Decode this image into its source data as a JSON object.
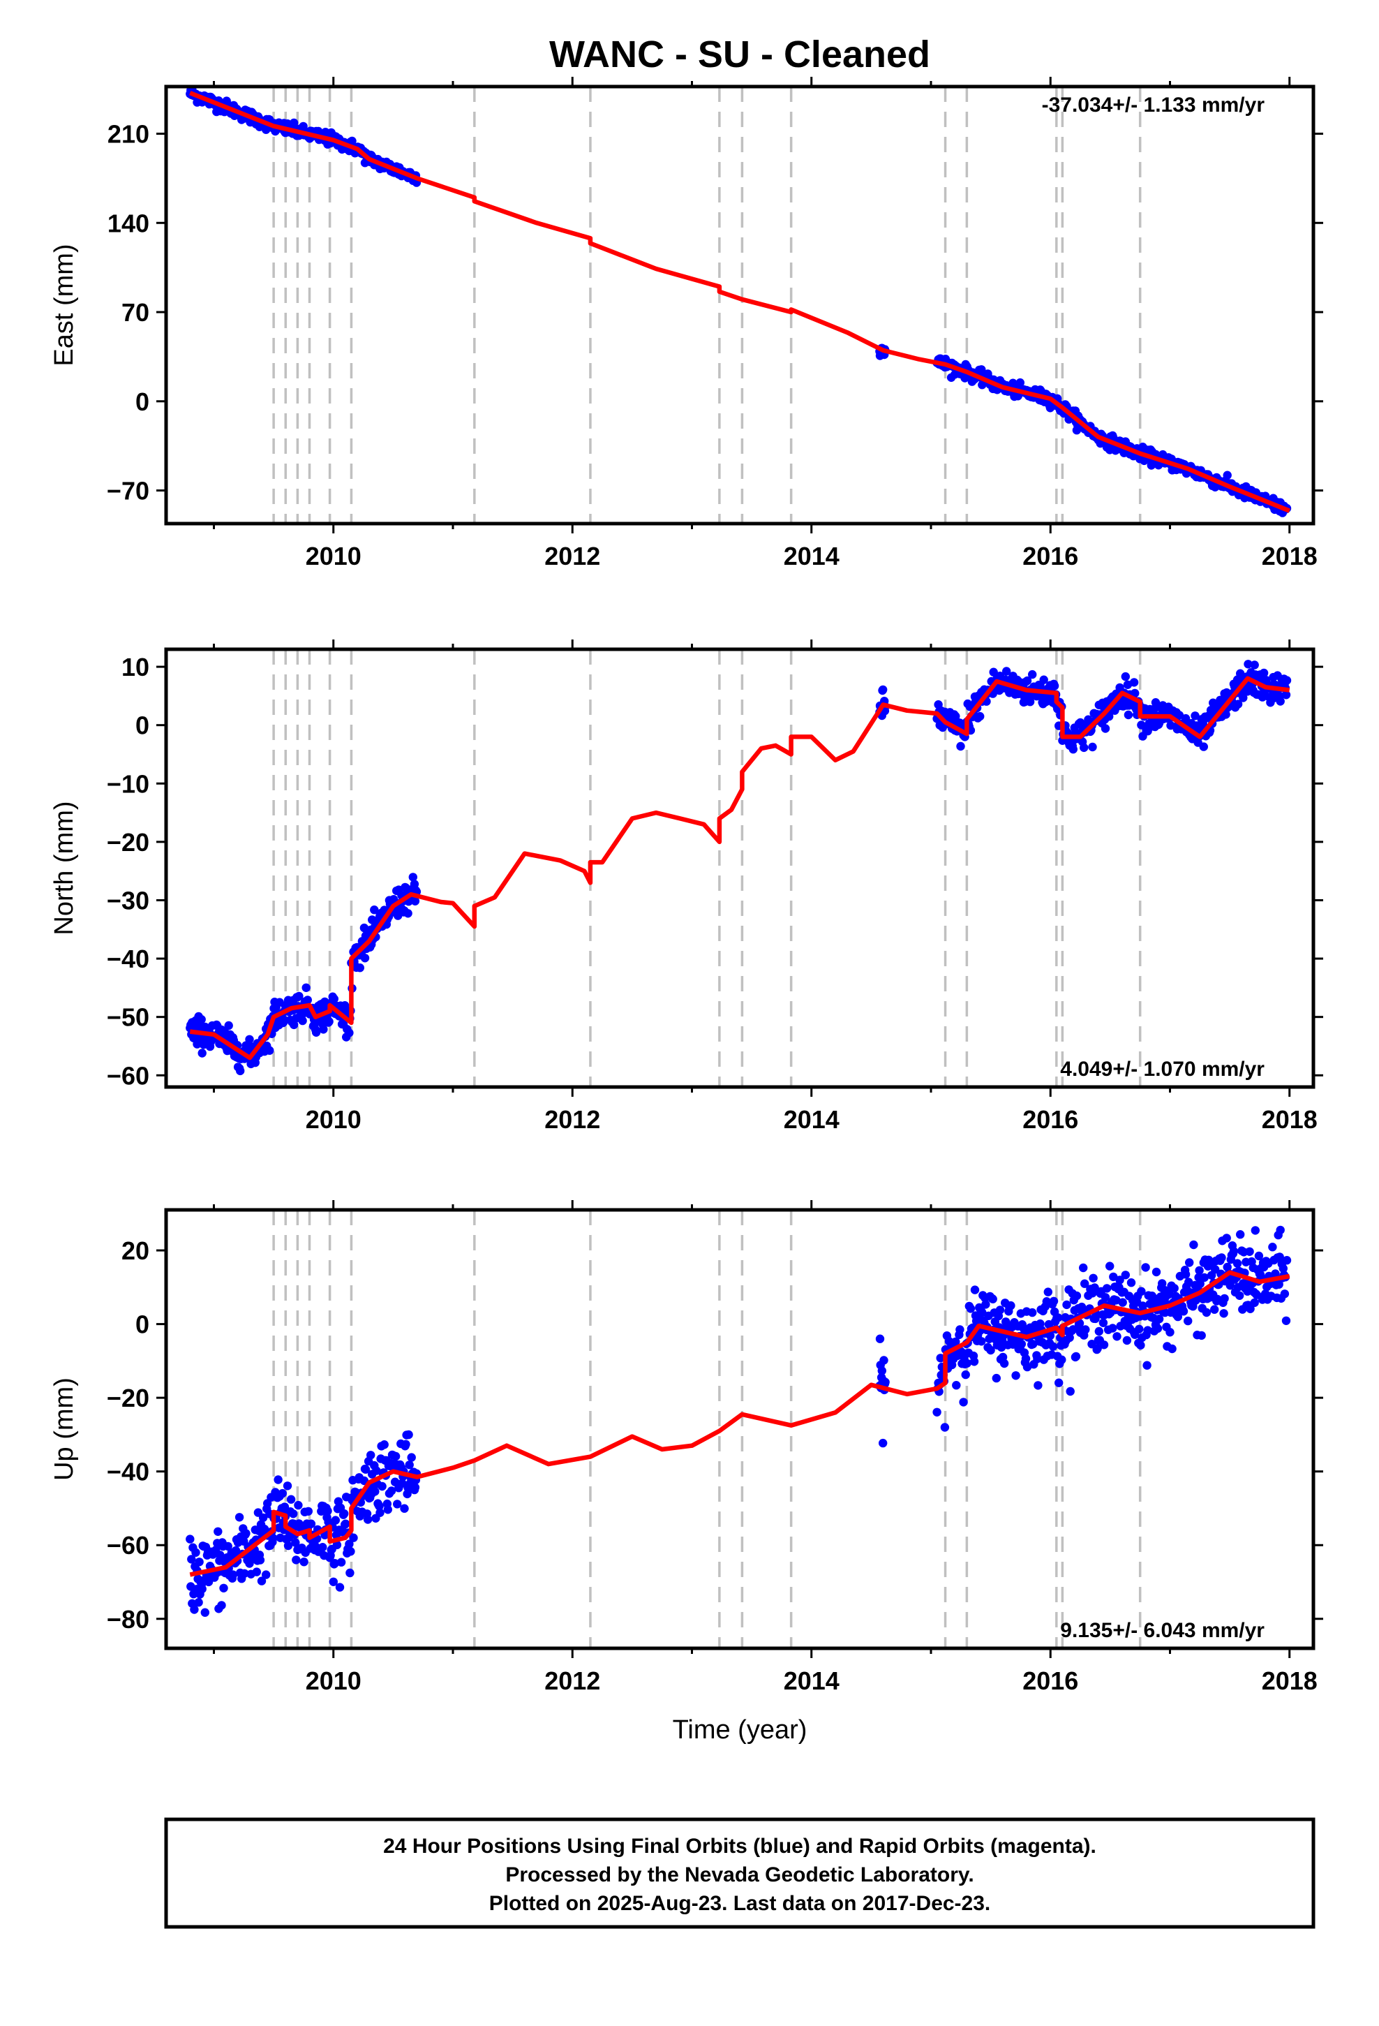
{
  "figure": {
    "title": "WANC  - SU - Cleaned",
    "xlabel": "Time (year)",
    "colors": {
      "final_orbits": "#0000ff",
      "model": "#ff0000",
      "offsets": "#c0c0c0"
    }
  },
  "caption": {
    "line1": "24 Hour Positions Using Final Orbits (blue) and Rapid Orbits (magenta).",
    "line2": "Processed by the Nevada Geodetic Laboratory.",
    "line3": "Plotted on 2025-Aug-23. Last data on 2017-Dec-23."
  },
  "chart_data": [
    {
      "type": "scatter",
      "ylabel": "East (mm)",
      "xlim": [
        2008.6,
        2018.2
      ],
      "ylim": [
        -96,
        247
      ],
      "x_ticks": [
        2010,
        2012,
        2014,
        2016,
        2018
      ],
      "y_ticks": [
        -70,
        0,
        70,
        140,
        210
      ],
      "rate_text": "-37.034+/- 1.133 mm/yr",
      "rate_position": "top-right",
      "offsets": [
        2009.5,
        2009.6,
        2009.7,
        2009.8,
        2009.97,
        2010.15,
        2011.18,
        2012.15,
        2013.23,
        2013.42,
        2013.83,
        2015.12,
        2015.3,
        2016.05,
        2016.1,
        2016.75
      ],
      "data_segments": [
        [
          2008.8,
          2010.7
        ],
        [
          2014.57,
          2014.62
        ],
        [
          2015.05,
          2017.98
        ]
      ],
      "scatter": 2.5,
      "model": [
        [
          2008.8,
          242
        ],
        [
          2009.5,
          216
        ],
        [
          2010.0,
          205
        ],
        [
          2010.2,
          198
        ],
        [
          2010.3,
          190
        ],
        [
          2010.7,
          175
        ],
        [
          2011.18,
          160
        ],
        [
          2011.18,
          157
        ],
        [
          2011.7,
          140
        ],
        [
          2012.15,
          128
        ],
        [
          2012.15,
          124
        ],
        [
          2012.7,
          104
        ],
        [
          2013.23,
          90
        ],
        [
          2013.23,
          86
        ],
        [
          2013.42,
          80
        ],
        [
          2013.83,
          70
        ],
        [
          2013.83,
          72
        ],
        [
          2014.3,
          54
        ],
        [
          2014.6,
          40
        ],
        [
          2014.9,
          33
        ],
        [
          2015.12,
          29
        ],
        [
          2015.3,
          23
        ],
        [
          2015.6,
          11
        ],
        [
          2016.0,
          2
        ],
        [
          2016.1,
          -5
        ],
        [
          2016.4,
          -28
        ],
        [
          2016.75,
          -41
        ],
        [
          2017.15,
          -53
        ],
        [
          2017.5,
          -67
        ],
        [
          2018.0,
          -86
        ]
      ]
    },
    {
      "type": "scatter",
      "ylabel": "North (mm)",
      "xlim": [
        2008.6,
        2018.2
      ],
      "ylim": [
        -62,
        13
      ],
      "x_ticks": [
        2010,
        2012,
        2014,
        2016,
        2018
      ],
      "y_ticks": [
        -60,
        -50,
        -40,
        -30,
        -20,
        -10,
        0,
        10
      ],
      "rate_text": "4.049+/- 1.070 mm/yr",
      "rate_position": "bottom-right",
      "offsets": [
        2009.5,
        2009.6,
        2009.7,
        2009.8,
        2009.97,
        2010.15,
        2011.18,
        2012.15,
        2013.23,
        2013.42,
        2013.83,
        2015.12,
        2015.3,
        2016.05,
        2016.1,
        2016.75
      ],
      "data_segments": [
        [
          2008.8,
          2010.7
        ],
        [
          2014.57,
          2014.62
        ],
        [
          2015.05,
          2017.98
        ]
      ],
      "scatter": 1.3,
      "model": [
        [
          2008.8,
          -52.5
        ],
        [
          2009.0,
          -53
        ],
        [
          2009.15,
          -55
        ],
        [
          2009.3,
          -57
        ],
        [
          2009.45,
          -53
        ],
        [
          2009.5,
          -50
        ],
        [
          2009.65,
          -48.5
        ],
        [
          2009.8,
          -48
        ],
        [
          2009.85,
          -50
        ],
        [
          2009.97,
          -49
        ],
        [
          2009.97,
          -48
        ],
        [
          2010.15,
          -51
        ],
        [
          2010.15,
          -40
        ],
        [
          2010.3,
          -37
        ],
        [
          2010.5,
          -31
        ],
        [
          2010.65,
          -29
        ],
        [
          2010.9,
          -30.3
        ],
        [
          2011.0,
          -30.5
        ],
        [
          2011.18,
          -34.5
        ],
        [
          2011.18,
          -31
        ],
        [
          2011.35,
          -29.5
        ],
        [
          2011.6,
          -22
        ],
        [
          2011.9,
          -23.2
        ],
        [
          2012.1,
          -25
        ],
        [
          2012.15,
          -27
        ],
        [
          2012.15,
          -23.5
        ],
        [
          2012.25,
          -23.5
        ],
        [
          2012.5,
          -16
        ],
        [
          2012.7,
          -15
        ],
        [
          2012.9,
          -16
        ],
        [
          2013.1,
          -17
        ],
        [
          2013.23,
          -20
        ],
        [
          2013.23,
          -16
        ],
        [
          2013.33,
          -14.5
        ],
        [
          2013.42,
          -11
        ],
        [
          2013.42,
          -8
        ],
        [
          2013.58,
          -4
        ],
        [
          2013.7,
          -3.5
        ],
        [
          2013.83,
          -5
        ],
        [
          2013.83,
          -2
        ],
        [
          2014.0,
          -2
        ],
        [
          2014.2,
          -6
        ],
        [
          2014.35,
          -4.5
        ],
        [
          2014.6,
          3.5
        ],
        [
          2014.8,
          2.5
        ],
        [
          2015.05,
          2
        ],
        [
          2015.12,
          0.5
        ],
        [
          2015.3,
          -1.5
        ],
        [
          2015.3,
          1
        ],
        [
          2015.55,
          7.5
        ],
        [
          2015.8,
          6
        ],
        [
          2016.05,
          5.5
        ],
        [
          2016.05,
          4
        ],
        [
          2016.1,
          3
        ],
        [
          2016.1,
          -2
        ],
        [
          2016.25,
          -2
        ],
        [
          2016.45,
          2
        ],
        [
          2016.6,
          5.5
        ],
        [
          2016.75,
          4
        ],
        [
          2016.75,
          1.5
        ],
        [
          2017.0,
          1.5
        ],
        [
          2017.25,
          -2
        ],
        [
          2017.45,
          3
        ],
        [
          2017.65,
          8
        ],
        [
          2017.8,
          6.5
        ],
        [
          2018.0,
          6
        ]
      ]
    },
    {
      "type": "scatter",
      "ylabel": "Up (mm)",
      "xlim": [
        2008.6,
        2018.2
      ],
      "ylim": [
        -88,
        31
      ],
      "x_ticks": [
        2010,
        2012,
        2014,
        2016,
        2018
      ],
      "y_ticks": [
        -80,
        -60,
        -40,
        -20,
        0,
        20
      ],
      "rate_text": "9.135+/- 6.043 mm/yr",
      "rate_position": "bottom-right",
      "offsets": [
        2009.5,
        2009.6,
        2009.7,
        2009.8,
        2009.97,
        2010.15,
        2011.18,
        2012.15,
        2013.23,
        2013.42,
        2013.83,
        2015.12,
        2015.3,
        2016.05,
        2016.1,
        2016.75
      ],
      "data_segments": [
        [
          2008.8,
          2010.7
        ],
        [
          2014.57,
          2014.62
        ],
        [
          2015.05,
          2017.98
        ]
      ],
      "scatter": 5,
      "model": [
        [
          2008.8,
          -68
        ],
        [
          2009.1,
          -66
        ],
        [
          2009.3,
          -61
        ],
        [
          2009.5,
          -56
        ],
        [
          2009.5,
          -51
        ],
        [
          2009.6,
          -52
        ],
        [
          2009.6,
          -55
        ],
        [
          2009.7,
          -57
        ],
        [
          2009.8,
          -56
        ],
        [
          2009.8,
          -58
        ],
        [
          2009.97,
          -55
        ],
        [
          2009.97,
          -59
        ],
        [
          2010.1,
          -58
        ],
        [
          2010.15,
          -56
        ],
        [
          2010.15,
          -50
        ],
        [
          2010.3,
          -43
        ],
        [
          2010.5,
          -40
        ],
        [
          2010.7,
          -41.5
        ],
        [
          2011.0,
          -39
        ],
        [
          2011.18,
          -37
        ],
        [
          2011.45,
          -33
        ],
        [
          2011.8,
          -38
        ],
        [
          2012.15,
          -36
        ],
        [
          2012.5,
          -30.5
        ],
        [
          2012.75,
          -34
        ],
        [
          2013.0,
          -33
        ],
        [
          2013.23,
          -29
        ],
        [
          2013.42,
          -24.5
        ],
        [
          2013.83,
          -27.5
        ],
        [
          2014.2,
          -24
        ],
        [
          2014.5,
          -16.5
        ],
        [
          2014.8,
          -19
        ],
        [
          2015.05,
          -17.5
        ],
        [
          2015.12,
          -16
        ],
        [
          2015.12,
          -8
        ],
        [
          2015.3,
          -5
        ],
        [
          2015.4,
          -0.5
        ],
        [
          2015.6,
          -2
        ],
        [
          2015.8,
          -3.5
        ],
        [
          2016.05,
          -1
        ],
        [
          2016.1,
          -3
        ],
        [
          2016.1,
          -0.5
        ],
        [
          2016.45,
          5
        ],
        [
          2016.75,
          3
        ],
        [
          2017.0,
          5
        ],
        [
          2017.25,
          8.5
        ],
        [
          2017.5,
          14
        ],
        [
          2017.75,
          11.5
        ],
        [
          2018.0,
          13
        ]
      ]
    }
  ]
}
